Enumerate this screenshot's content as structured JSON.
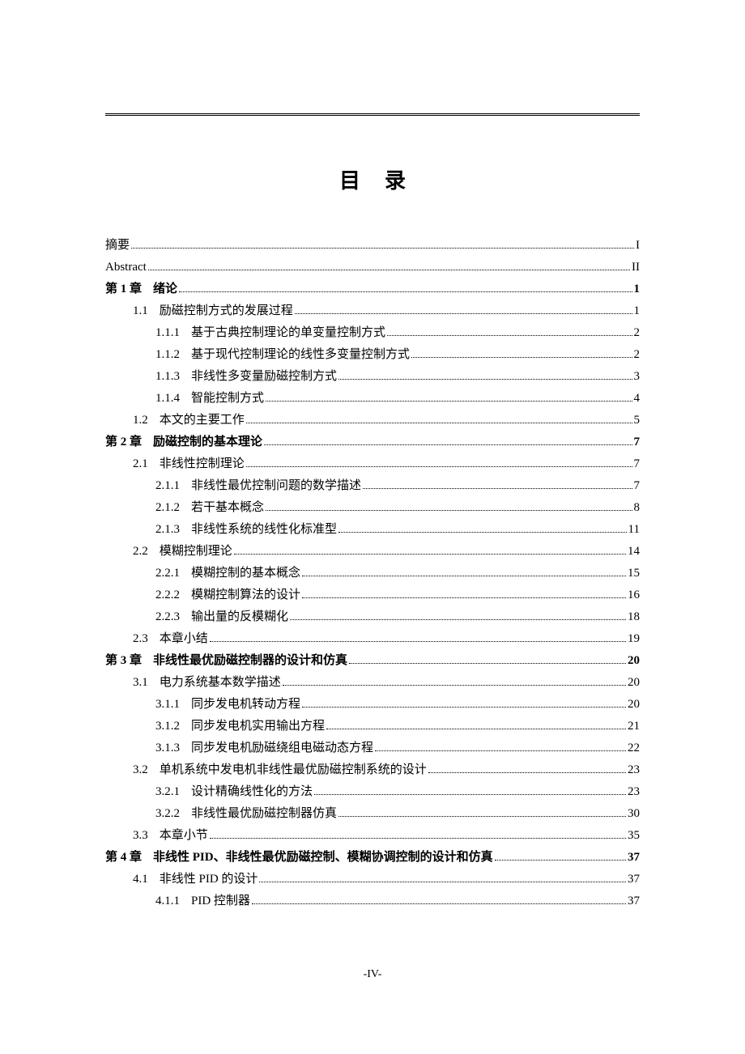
{
  "title": "目录",
  "footer": "-IV-",
  "entries": [
    {
      "level": 0,
      "bold": false,
      "num": "",
      "text": "摘要",
      "page": "I"
    },
    {
      "level": 0,
      "bold": false,
      "num": "",
      "text": "Abstract",
      "page": "II"
    },
    {
      "level": 0,
      "bold": true,
      "num": "第 1 章",
      "text": "绪论",
      "page": "1"
    },
    {
      "level": 1,
      "bold": false,
      "num": "1.1",
      "text": "励磁控制方式的发展过程",
      "page": "1"
    },
    {
      "level": 2,
      "bold": false,
      "num": "1.1.1",
      "text": "基于古典控制理论的单变量控制方式",
      "page": "2"
    },
    {
      "level": 2,
      "bold": false,
      "num": "1.1.2",
      "text": "基于现代控制理论的线性多变量控制方式",
      "page": "2"
    },
    {
      "level": 2,
      "bold": false,
      "num": "1.1.3",
      "text": "非线性多变量励磁控制方式",
      "page": "3"
    },
    {
      "level": 2,
      "bold": false,
      "num": "1.1.4",
      "text": "智能控制方式",
      "page": "4"
    },
    {
      "level": 1,
      "bold": false,
      "num": "1.2",
      "text": "本文的主要工作",
      "page": "5"
    },
    {
      "level": 0,
      "bold": true,
      "num": "第 2 章",
      "text": "励磁控制的基本理论",
      "page": "7"
    },
    {
      "level": 1,
      "bold": false,
      "num": "2.1",
      "text": "非线性控制理论",
      "page": "7"
    },
    {
      "level": 2,
      "bold": false,
      "num": "2.1.1",
      "text": "非线性最优控制问题的数学描述",
      "page": "7"
    },
    {
      "level": 2,
      "bold": false,
      "num": "2.1.2",
      "text": "若干基本概念",
      "page": "8"
    },
    {
      "level": 2,
      "bold": false,
      "num": "2.1.3",
      "text": "非线性系统的线性化标准型",
      "page": "11"
    },
    {
      "level": 1,
      "bold": false,
      "num": "2.2",
      "text": "模糊控制理论",
      "page": "14"
    },
    {
      "level": 2,
      "bold": false,
      "num": "2.2.1",
      "text": "模糊控制的基本概念",
      "page": "15"
    },
    {
      "level": 2,
      "bold": false,
      "num": "2.2.2",
      "text": "模糊控制算法的设计",
      "page": "16"
    },
    {
      "level": 2,
      "bold": false,
      "num": "2.2.3",
      "text": "输出量的反模糊化",
      "page": "18"
    },
    {
      "level": 1,
      "bold": false,
      "num": "2.3",
      "text": "本章小结",
      "page": "19"
    },
    {
      "level": 0,
      "bold": true,
      "num": "第 3 章",
      "text": "非线性最优励磁控制器的设计和仿真",
      "page": "20"
    },
    {
      "level": 1,
      "bold": false,
      "num": "3.1",
      "text": "电力系统基本数学描述",
      "page": "20"
    },
    {
      "level": 2,
      "bold": false,
      "num": "3.1.1",
      "text": "同步发电机转动方程",
      "page": "20"
    },
    {
      "level": 2,
      "bold": false,
      "num": "3.1.2",
      "text": "同步发电机实用输出方程",
      "page": "21"
    },
    {
      "level": 2,
      "bold": false,
      "num": "3.1.3",
      "text": "同步发电机励磁绕组电磁动态方程",
      "page": "22"
    },
    {
      "level": 1,
      "bold": false,
      "num": "3.2",
      "text": "单机系统中发电机非线性最优励磁控制系统的设计",
      "page": "23"
    },
    {
      "level": 2,
      "bold": false,
      "num": "3.2.1",
      "text": "设计精确线性化的方法",
      "page": "23"
    },
    {
      "level": 2,
      "bold": false,
      "num": "3.2.2",
      "text": "非线性最优励磁控制器仿真",
      "page": "30"
    },
    {
      "level": 1,
      "bold": false,
      "num": "3.3",
      "text": "本章小节",
      "page": "35"
    },
    {
      "level": 0,
      "bold": true,
      "num": "第 4 章",
      "text": "非线性 PID、非线性最优励磁控制、模糊协调控制的设计和仿真",
      "page": "37"
    },
    {
      "level": 1,
      "bold": false,
      "num": "4.1",
      "text": "非线性 PID 的设计",
      "page": "37"
    },
    {
      "level": 2,
      "bold": false,
      "num": "4.1.1",
      "text": "PID 控制器",
      "page": "37"
    }
  ]
}
